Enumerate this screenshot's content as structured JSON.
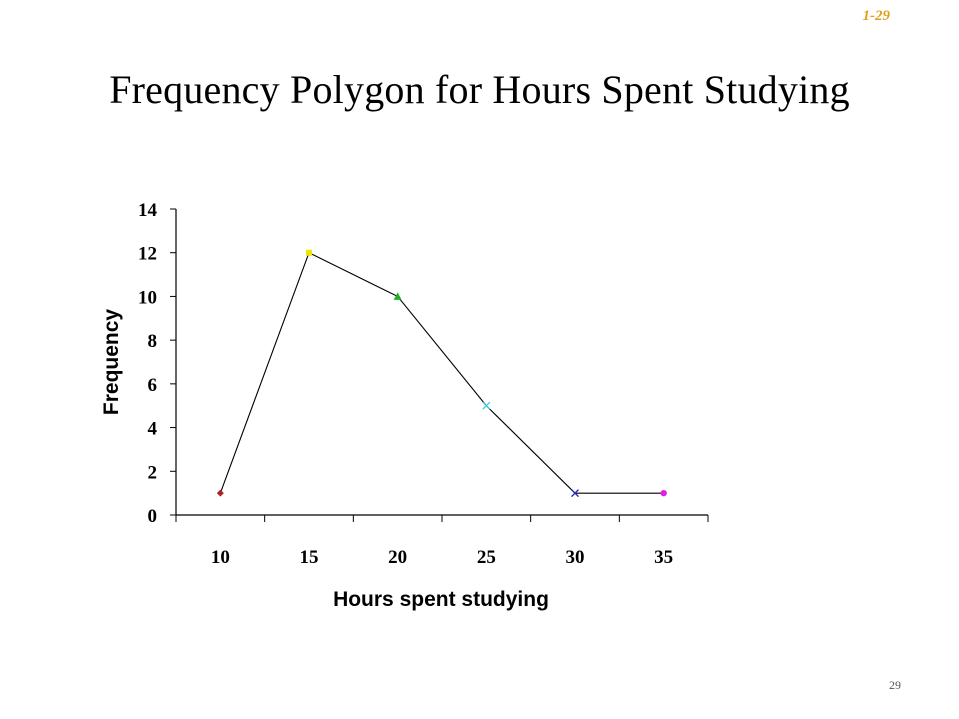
{
  "slide": {
    "code": "1-29",
    "title": "Frequency Polygon for Hours Spent Studying",
    "page_number": "29"
  },
  "chart_data": {
    "type": "line",
    "title": "",
    "xlabel": "Hours spent studying",
    "ylabel": "Frequency",
    "x_ticks": [
      "10",
      "15",
      "20",
      "25",
      "30",
      "35"
    ],
    "y_ticks": [
      "0",
      "2",
      "4",
      "6",
      "8",
      "10",
      "12",
      "14"
    ],
    "ylim": [
      0,
      14
    ],
    "grid": false,
    "legend": "none",
    "series": [
      {
        "values": [
          1,
          12,
          10,
          5,
          1,
          1
        ],
        "marker_colors": [
          "#b0202a",
          "#e8e800",
          "#22b022",
          "#40c8e0",
          "#2a2ab8",
          "#e020e0"
        ],
        "marker_shapes": [
          "diamond",
          "square",
          "triangle",
          "x",
          "x",
          "circle"
        ],
        "line_color": "#000000"
      }
    ]
  }
}
